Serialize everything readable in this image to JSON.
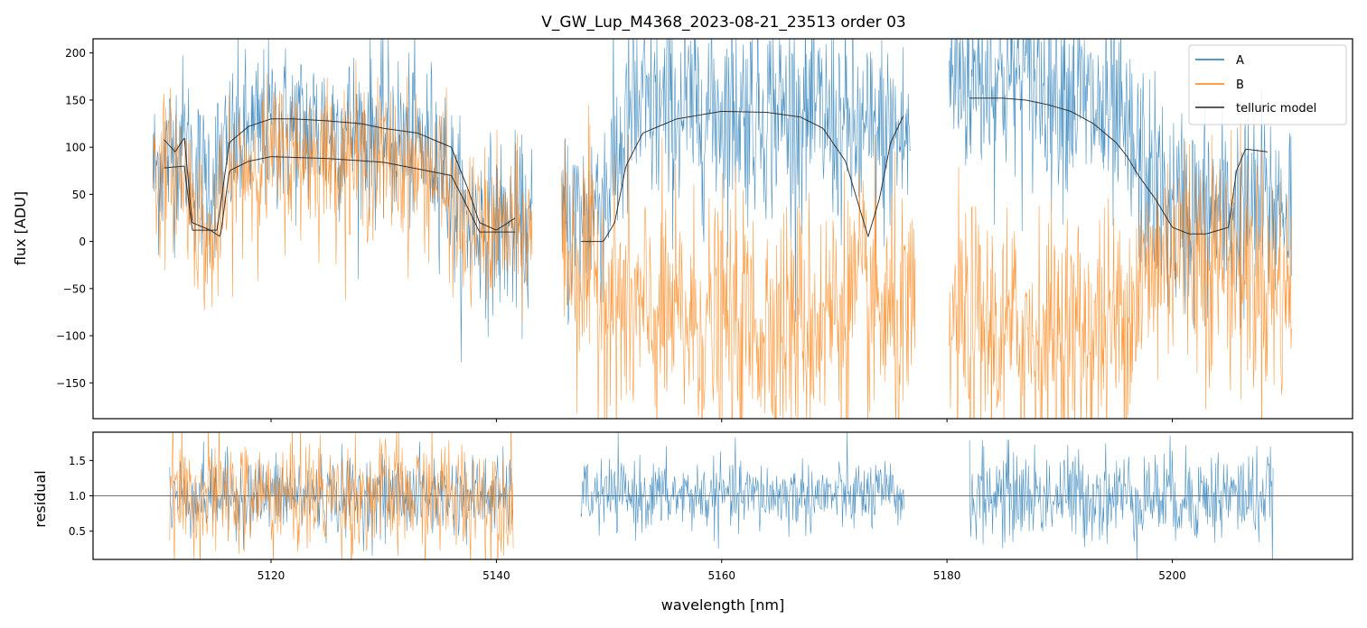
{
  "chart_data": [
    {
      "id": "flux_panel",
      "type": "line",
      "title": "V_GW_Lup_M4368_2023-08-21_23513  order 03",
      "xlabel": "",
      "ylabel": "flux [ADU]",
      "xlim": [
        5104.2,
        5216.0
      ],
      "ylim": [
        -188,
        215
      ],
      "yticks": [
        -150,
        -100,
        -50,
        0,
        50,
        100,
        150,
        200
      ],
      "ytick_labels": [
        "−150",
        "−100",
        "−50",
        "0",
        "50",
        "100",
        "150",
        "200"
      ],
      "xticks": [
        5120,
        5140,
        5160,
        5180,
        5200
      ],
      "legend": {
        "position": "top-right",
        "entries": [
          "A",
          "B",
          "telluric model"
        ]
      },
      "series": [
        {
          "name": "A",
          "color": "#1f77b4",
          "noisy": true,
          "segments": [
            {
              "x": [
                5109.5,
                5112,
                5114,
                5117,
                5120,
                5125,
                5130,
                5135,
                5137,
                5141,
                5143.2
              ],
              "mean": [
                70,
                110,
                60,
                105,
                120,
                120,
                115,
                95,
                20,
                15,
                10
              ],
              "noise": 45
            },
            {
              "x": [
                5145.8,
                5148,
                5150,
                5152,
                5160,
                5168,
                5172,
                5176.8
              ],
              "mean": [
                20,
                25,
                60,
                135,
                140,
                135,
                110,
                110
              ],
              "noise": 55
            },
            {
              "x": [
                5180.2,
                5185,
                5190,
                5195,
                5200,
                5205,
                5210.6
              ],
              "mean": [
                175,
                175,
                165,
                120,
                30,
                30,
                40
              ],
              "noise": 55
            }
          ]
        },
        {
          "name": "B",
          "color": "#ff7f0e",
          "noisy": true,
          "segments": [
            {
              "x": [
                5109.5,
                5112,
                5114.5,
                5117,
                5120,
                5125,
                5130,
                5135,
                5137,
                5141,
                5143.2
              ],
              "mean": [
                70,
                80,
                -10,
                75,
                90,
                90,
                85,
                70,
                10,
                10,
                10
              ],
              "noise": 40
            },
            {
              "x": [
                5145.8,
                5147,
                5150,
                5152,
                5160,
                5168,
                5172,
                5177.2
              ],
              "mean": [
                5,
                -20,
                -50,
                -80,
                -90,
                -85,
                -60,
                -100
              ],
              "noise": 65
            },
            {
              "x": [
                5180.2,
                5185,
                5190,
                5195,
                5200,
                5205,
                5210.6
              ],
              "mean": [
                -90,
                -100,
                -100,
                -90,
                0,
                -20,
                -55
              ],
              "noise": 65
            }
          ]
        },
        {
          "name": "telluric model",
          "color": "#222222",
          "noisy": false,
          "segments": [
            {
              "x": [
                5110.5,
                5111.5,
                5112.3,
                5113,
                5114.6,
                5115.2,
                5116.3,
                5118,
                5120,
                5122,
                5125,
                5128,
                5130,
                5133,
                5136,
                5137.5,
                5138.5,
                5140,
                5141.7
              ],
              "mean": [
                108,
                95,
                110,
                20,
                12,
                12,
                105,
                122,
                130,
                130,
                128,
                125,
                120,
                115,
                100,
                55,
                20,
                12,
                25
              ]
            },
            {
              "x": [
                5110.5,
                5112.3,
                5113,
                5114.6,
                5115.5,
                5116.3,
                5118,
                5120,
                5125,
                5130,
                5136,
                5137.5,
                5138.5,
                5141.7
              ],
              "mean": [
                78,
                80,
                12,
                12,
                5,
                75,
                85,
                90,
                88,
                84,
                70,
                35,
                10,
                10
              ]
            },
            {
              "x": [
                5147.5,
                5149.5,
                5150.5,
                5151.5,
                5153,
                5156,
                5160,
                5164,
                5167,
                5169,
                5171,
                5173,
                5174,
                5175,
                5176.2
              ],
              "mean": [
                0,
                0,
                20,
                80,
                115,
                130,
                138,
                137,
                132,
                120,
                85,
                5,
                45,
                105,
                135
              ]
            },
            {
              "x": [
                5182,
                5185,
                5187,
                5189,
                5191,
                5193,
                5195,
                5196,
                5197,
                5198.5,
                5200,
                5201.5,
                5203,
                5205,
                5205.7,
                5206.5,
                5208.5
              ],
              "mean": [
                152,
                152,
                150,
                145,
                138,
                125,
                105,
                90,
                70,
                45,
                15,
                8,
                8,
                15,
                75,
                98,
                95
              ]
            }
          ]
        }
      ]
    },
    {
      "id": "residual_panel",
      "type": "line",
      "title": "",
      "xlabel": "wavelength [nm]",
      "ylabel": "residual",
      "xlim": [
        5104.2,
        5216.0
      ],
      "ylim": [
        0.1,
        1.9
      ],
      "yticks": [
        0.5,
        1.0,
        1.5
      ],
      "ytick_labels": [
        "0.5",
        "1.0",
        "1.5"
      ],
      "xticks": [
        5120,
        5140,
        5160,
        5180,
        5200
      ],
      "xtick_labels": [
        "5120",
        "5140",
        "5160",
        "5180",
        "5200"
      ],
      "reference_line": 1.0,
      "series": [
        {
          "name": "A",
          "color": "#1f77b4",
          "noisy": true,
          "segments": [
            {
              "x": [
                5111,
                5141.5
              ],
              "mean": [
                1.0,
                1.0
              ],
              "noise": 0.28
            },
            {
              "x": [
                5147.5,
                5176.2
              ],
              "mean": [
                1.0,
                1.0
              ],
              "noise": 0.25
            },
            {
              "x": [
                5182,
                5209
              ],
              "mean": [
                1.0,
                1.0
              ],
              "noise": 0.33
            }
          ]
        },
        {
          "name": "B",
          "color": "#ff7f0e",
          "noisy": true,
          "segments": [
            {
              "x": [
                5111,
                5141.5
              ],
              "mean": [
                1.0,
                1.0
              ],
              "noise": 0.42
            }
          ]
        }
      ]
    }
  ]
}
